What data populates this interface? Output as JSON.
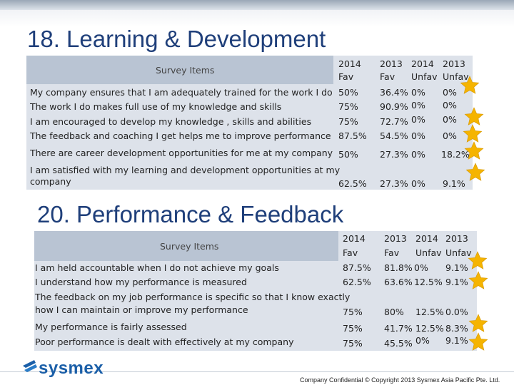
{
  "sections": [
    {
      "title": "18. Learning & Development",
      "col_header_label": "Survey Items",
      "columns": [
        {
          "year": "2014",
          "kind": "Fav"
        },
        {
          "year": "2013",
          "kind": "Fav"
        },
        {
          "year": "2014",
          "kind": "Unfav"
        },
        {
          "year": "2013",
          "kind": "Unfav"
        }
      ],
      "rows": [
        {
          "item": "My company ensures that I am adequately trained for the work I do",
          "v": [
            "50%",
            "36.4%",
            "0%",
            "0%"
          ],
          "starred": true
        },
        {
          "item": "The work I do makes full use of my knowledge and skills",
          "v": [
            "75%",
            "90.9%",
            "0%",
            "0%"
          ],
          "starred": true
        },
        {
          "item": "I am encouraged to develop my knowledge , skills and abilities",
          "v": [
            "75%",
            "72.7%",
            "0%",
            "0%"
          ],
          "starred": true
        },
        {
          "item": "The feedback and coaching I get helps me to improve performance",
          "v": [
            "87.5%",
            "54.5%",
            "0%",
            "0%"
          ],
          "starred": true
        },
        {
          "item": "There are career development opportunities for me at my company",
          "v": [
            "50%",
            "27.3%",
            "0%",
            "18.2%"
          ],
          "starred": true
        },
        {
          "item_lines": [
            "I am satisfied with my learning and development opportunities at my",
            "company"
          ],
          "v": [
            "62.5%",
            "27.3%",
            "0%",
            "9.1%"
          ],
          "starred": true
        }
      ]
    },
    {
      "title": "20. Performance & Feedback",
      "col_header_label": "Survey Items",
      "columns": [
        {
          "year": "2014",
          "kind": "Fav"
        },
        {
          "year": "2013",
          "kind": "Fav"
        },
        {
          "year": "2014",
          "kind": "Unfav"
        },
        {
          "year": "2013",
          "kind": "Unfav"
        }
      ],
      "rows": [
        {
          "item": "I am held accountable when I do not achieve my goals",
          "v": [
            "87.5%",
            "81.8%",
            "0%",
            "9.1%"
          ],
          "starred": true
        },
        {
          "item": "I understand how my performance is measured",
          "v": [
            "62.5%",
            "63.6%",
            "12.5%",
            "9.1%"
          ],
          "starred": true
        },
        {
          "item_lines": [
            "The feedback on my job performance is specific so that I know exactly",
            "how I can maintain or improve my performance"
          ],
          "v": [
            "75%",
            "80%",
            "12.5%",
            "0.0%"
          ],
          "starred": false
        },
        {
          "item": "My performance is fairly assessed",
          "v": [
            "75%",
            "41.7%",
            "12.5%",
            "8.3%"
          ],
          "starred": true
        },
        {
          "item": "Poor performance is dealt with effectively at my company",
          "v": [
            "75%",
            "45.5%",
            "0%",
            "9.1%"
          ],
          "starred": true
        }
      ]
    }
  ],
  "logo_text": "sysmex",
  "footer": "Company Confidential © Copyright 2013 Sysmex Asia Pacific Pte. Ltd.",
  "colors": {
    "title": "#1f3f7a",
    "star": "#f5b400",
    "logo": "#1b5fa8"
  }
}
